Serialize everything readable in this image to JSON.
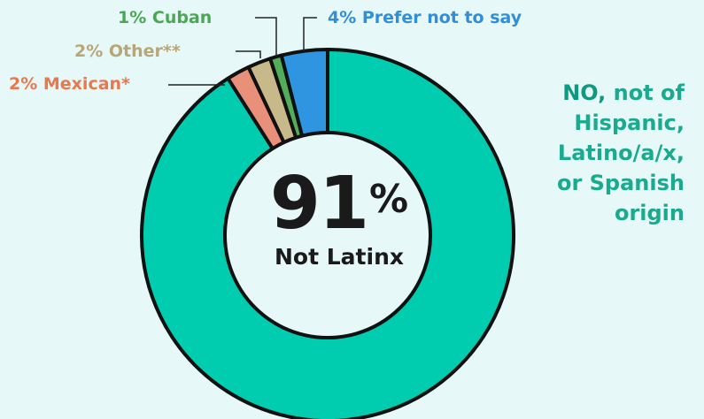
{
  "chart_data": {
    "type": "pie",
    "variant": "donut",
    "center": {
      "value": "91",
      "unit": "%",
      "label": "Not Latinx"
    },
    "slices": [
      {
        "label": "Not Latinx",
        "value": 91,
        "color": "#00cdb0"
      },
      {
        "label": "Mexican*",
        "value": 2,
        "pct_text": "2%",
        "color": "#e8907a"
      },
      {
        "label": "Other**",
        "value": 2,
        "pct_text": "2%",
        "color": "#c8b98a"
      },
      {
        "label": "Cuban",
        "value": 1,
        "pct_text": "1%",
        "color": "#54ad5a"
      },
      {
        "label": "Prefer not to say",
        "value": 4,
        "pct_text": "4%",
        "color": "#2f95e0"
      }
    ]
  },
  "side_note": {
    "strong": "NO,",
    "rest_first": "not of",
    "lines": [
      "Hispanic,",
      "Latino/a/x,",
      "or Spanish",
      "origin"
    ]
  },
  "label_colors": {
    "Mexican*": "#e8794f",
    "Other**": "#b8a677",
    "Cuban": "#4aa754",
    "Prefer not to say": "#2f8fd8"
  }
}
